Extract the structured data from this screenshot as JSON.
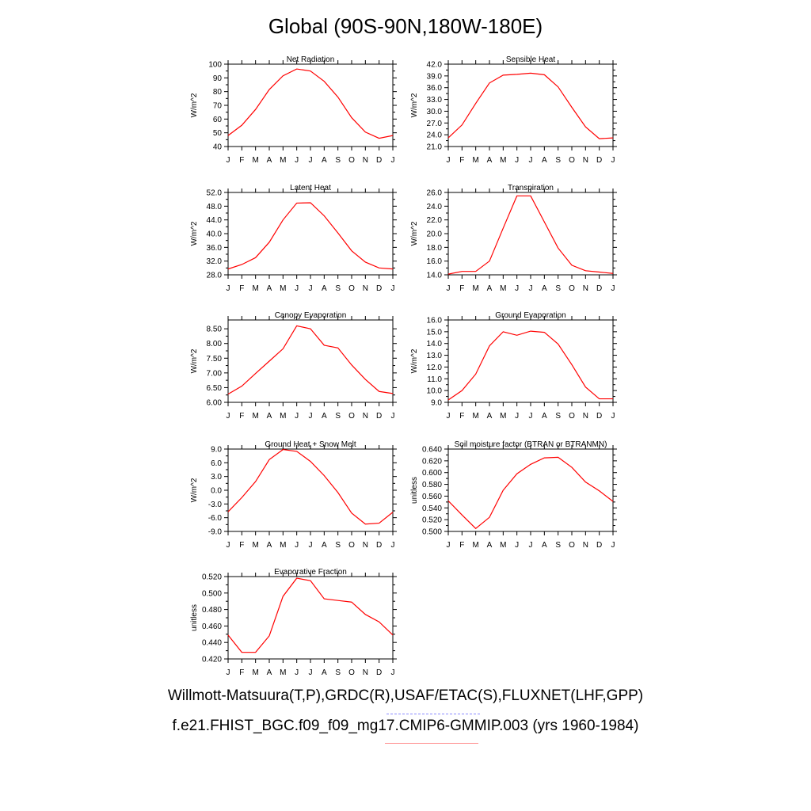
{
  "page": {
    "title": "Global (90S-90N,180W-180E)",
    "footer_line1": "Willmott-Matsuura(T,P),GRDC(R),USAF/ETAC(S),FLUXNET(LHF,GPP)",
    "footer_line2": "f.e21.FHIST_BGC.f09_f09_mg17.CMIP6-GMMIP.003 (yrs 1960-1984)",
    "line1_dash_color": "#8a8aff",
    "line2_underline_color": "#ff8a8a"
  },
  "chart_data": [
    {
      "type": "line",
      "title": "Net Radiation",
      "ylabel": "W/m^2",
      "x": [
        "J",
        "F",
        "M",
        "A",
        "M",
        "J",
        "J",
        "A",
        "S",
        "O",
        "N",
        "D",
        "J"
      ],
      "ylim": [
        40,
        100
      ],
      "yticks": [
        "40",
        "50",
        "60",
        "70",
        "80",
        "90",
        "100"
      ],
      "series": [
        {
          "color": "#ff0000",
          "values": [
            48,
            55.5,
            67,
            81.5,
            91.5,
            96.5,
            95,
            87.5,
            76,
            61,
            50.5,
            46,
            48
          ]
        }
      ]
    },
    {
      "type": "line",
      "title": "Sensible Heat",
      "ylabel": "W/m^2",
      "x": [
        "J",
        "F",
        "M",
        "A",
        "M",
        "J",
        "J",
        "A",
        "S",
        "O",
        "N",
        "D",
        "J"
      ],
      "ylim": [
        21,
        42
      ],
      "yticks": [
        "21.0",
        "24.0",
        "27.0",
        "30.0",
        "33.0",
        "36.0",
        "39.0",
        "42.0"
      ],
      "series": [
        {
          "color": "#ff0000",
          "values": [
            23.2,
            26.5,
            32,
            37.2,
            39.2,
            39.4,
            39.7,
            39.3,
            36.2,
            31,
            26,
            23,
            23.2
          ]
        }
      ]
    },
    {
      "type": "line",
      "title": "Latent Heat",
      "ylabel": "W/m^2",
      "x": [
        "J",
        "F",
        "M",
        "A",
        "M",
        "J",
        "J",
        "A",
        "S",
        "O",
        "N",
        "D",
        "J"
      ],
      "ylim": [
        28,
        52
      ],
      "yticks": [
        "28.0",
        "32.0",
        "36.0",
        "40.0",
        "44.0",
        "48.0",
        "52.0"
      ],
      "series": [
        {
          "color": "#ff0000",
          "values": [
            29.7,
            31,
            33,
            37.5,
            44,
            48.9,
            49,
            45.2,
            40.2,
            35,
            31.7,
            30,
            29.7
          ]
        }
      ]
    },
    {
      "type": "line",
      "title": "Transpiration",
      "ylabel": "W/m^2",
      "x": [
        "J",
        "F",
        "M",
        "A",
        "M",
        "J",
        "J",
        "A",
        "S",
        "O",
        "N",
        "D",
        "J"
      ],
      "ylim": [
        14,
        26
      ],
      "yticks": [
        "14.0",
        "16.0",
        "18.0",
        "20.0",
        "22.0",
        "24.0",
        "26.0"
      ],
      "series": [
        {
          "color": "#ff0000",
          "values": [
            14.1,
            14.5,
            14.5,
            16,
            20.8,
            25.5,
            25.5,
            21.7,
            17.9,
            15.4,
            14.6,
            14.4,
            14.2
          ]
        }
      ]
    },
    {
      "type": "line",
      "title": "Canopy Evaporation",
      "ylabel": "W/m^2",
      "x": [
        "J",
        "F",
        "M",
        "A",
        "M",
        "J",
        "J",
        "A",
        "S",
        "O",
        "N",
        "D",
        "J"
      ],
      "ylim": [
        6.0,
        8.8
      ],
      "yticks": [
        "6.00",
        "6.50",
        "7.00",
        "7.50",
        "8.00",
        "8.50"
      ],
      "series": [
        {
          "color": "#ff0000",
          "values": [
            6.28,
            6.55,
            6.98,
            7.4,
            7.82,
            8.6,
            8.5,
            7.94,
            7.85,
            7.27,
            6.78,
            6.37,
            6.3
          ]
        }
      ]
    },
    {
      "type": "line",
      "title": "Ground Evaporation",
      "ylabel": "W/m^2",
      "x": [
        "J",
        "F",
        "M",
        "A",
        "M",
        "J",
        "J",
        "A",
        "S",
        "O",
        "N",
        "D",
        "J"
      ],
      "ylim": [
        9,
        16
      ],
      "yticks": [
        "9.0",
        "10.0",
        "11.0",
        "12.0",
        "13.0",
        "14.0",
        "15.0",
        "16.0"
      ],
      "series": [
        {
          "color": "#ff0000",
          "values": [
            9.2,
            10,
            11.4,
            13.8,
            15,
            14.7,
            15.05,
            14.95,
            13.95,
            12.2,
            10.3,
            9.3,
            9.3
          ]
        }
      ]
    },
    {
      "type": "line",
      "title": "Ground Heat + Snow Melt",
      "ylabel": "W/m^2",
      "x": [
        "J",
        "F",
        "M",
        "A",
        "M",
        "J",
        "J",
        "A",
        "S",
        "O",
        "N",
        "D",
        "J"
      ],
      "ylim": [
        -9,
        9
      ],
      "yticks": [
        "-9.0",
        "-6.0",
        "-3.0",
        "0.0",
        "3.0",
        "6.0",
        "9.0"
      ],
      "series": [
        {
          "color": "#ff0000",
          "values": [
            -4.7,
            -1.6,
            1.9,
            6.7,
            8.9,
            8.5,
            6.3,
            3.2,
            -0.5,
            -5,
            -7.4,
            -7.2,
            -4.8
          ]
        }
      ]
    },
    {
      "type": "line",
      "title": "Soil moisture factor (BTRAN or BTRANMN)",
      "ylabel": "unitless",
      "x": [
        "J",
        "F",
        "M",
        "A",
        "M",
        "J",
        "J",
        "A",
        "S",
        "O",
        "N",
        "D",
        "J"
      ],
      "ylim": [
        0.5,
        0.64
      ],
      "yticks": [
        "0.500",
        "0.520",
        "0.540",
        "0.560",
        "0.580",
        "0.600",
        "0.620",
        "0.640"
      ],
      "series": [
        {
          "color": "#ff0000",
          "values": [
            0.552,
            0.528,
            0.505,
            0.524,
            0.57,
            0.598,
            0.614,
            0.625,
            0.626,
            0.609,
            0.584,
            0.569,
            0.551
          ]
        }
      ]
    },
    {
      "type": "line",
      "title": "Evaporative Fraction",
      "ylabel": "unitless",
      "x": [
        "J",
        "F",
        "M",
        "A",
        "M",
        "J",
        "J",
        "A",
        "S",
        "O",
        "N",
        "D",
        "J"
      ],
      "ylim": [
        0.42,
        0.52
      ],
      "yticks": [
        "0.420",
        "0.440",
        "0.460",
        "0.480",
        "0.500",
        "0.520"
      ],
      "series": [
        {
          "color": "#ff0000",
          "values": [
            0.449,
            0.428,
            0.428,
            0.448,
            0.496,
            0.518,
            0.515,
            0.493,
            0.491,
            0.489,
            0.474,
            0.465,
            0.449
          ]
        }
      ]
    }
  ]
}
